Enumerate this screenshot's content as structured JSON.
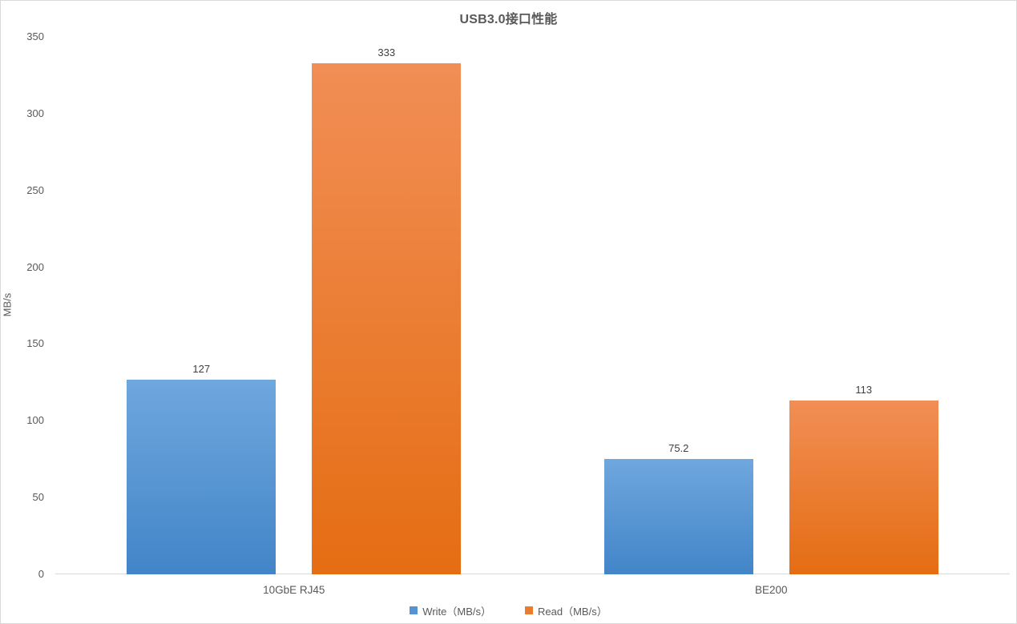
{
  "chart_data": {
    "type": "bar",
    "title": "USB3.0接口性能",
    "ylabel": "MB/s",
    "xlabel": "",
    "categories": [
      "10GbE RJ45",
      "BE200"
    ],
    "series": [
      {
        "name": "Write（MB/s）",
        "values": [
          127,
          75.2
        ],
        "labels": [
          "127",
          "75.2"
        ],
        "color_top": "#6FA7DE",
        "color_bottom": "#4285C8",
        "legend_color": "#5593D2"
      },
      {
        "name": "Read（MB/s）",
        "values": [
          333,
          113
        ],
        "labels": [
          "333",
          "113"
        ],
        "color_top": "#F18E55",
        "color_bottom": "#E56D13",
        "legend_color": "#EC7B2D"
      }
    ],
    "ylim": [
      0,
      350
    ],
    "yticks": [
      0,
      50,
      100,
      150,
      200,
      250,
      300,
      350
    ],
    "grid": false,
    "legend_position": "bottom",
    "colors": {
      "axis_line": "#d9d9d9",
      "tick_text": "#595959",
      "title_text": "#595959",
      "data_label_text": "#404040"
    }
  }
}
